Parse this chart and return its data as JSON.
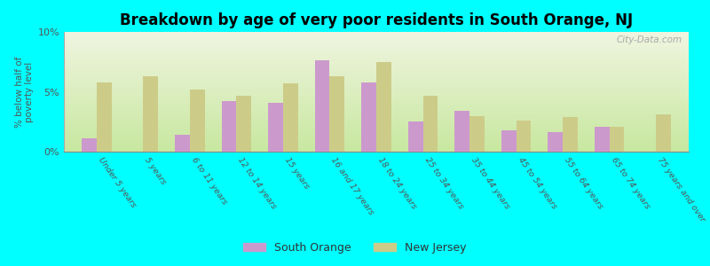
{
  "title": "Breakdown by age of very poor residents in South Orange, NJ",
  "ylabel": "% below half of\npoverty level",
  "categories": [
    "Under 5 years",
    "5 years",
    "6 to 11 years",
    "12 to 14 years",
    "15 years",
    "16 and 17 years",
    "18 to 24 years",
    "25 to 34 years",
    "35 to 44 years",
    "45 to 54 years",
    "55 to 64 years",
    "65 to 74 years",
    "75 years and over"
  ],
  "south_orange": [
    1.1,
    0.0,
    1.4,
    4.2,
    4.1,
    7.6,
    5.8,
    2.5,
    3.4,
    1.8,
    1.6,
    2.1,
    0.0
  ],
  "new_jersey": [
    5.8,
    6.3,
    5.2,
    4.7,
    5.7,
    6.3,
    7.5,
    4.7,
    3.0,
    2.6,
    2.9,
    2.1,
    3.1
  ],
  "south_orange_color": "#cc99cc",
  "new_jersey_color": "#cccc88",
  "background_outer": "#00ffff",
  "background_inner_top": "#f0f5e0",
  "background_inner_bottom": "#c8e8a0",
  "ylim": [
    0,
    10
  ],
  "yticks": [
    0,
    5,
    10
  ],
  "ytick_labels": [
    "0%",
    "5%",
    "10%"
  ],
  "bar_width": 0.32,
  "title_fontsize": 12,
  "watermark": "City-Data.com"
}
